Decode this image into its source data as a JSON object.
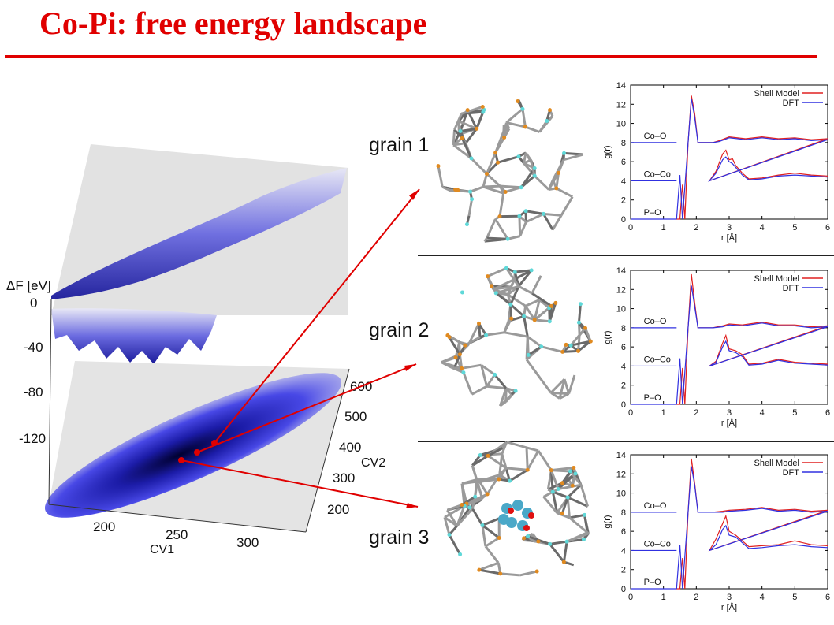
{
  "slide": {
    "title": "Co-Pi: free energy landscape",
    "accent_color": "#e00000"
  },
  "landscape": {
    "z_label": "ΔF [eV]",
    "z_ticks": [
      "0",
      "-40",
      "-80",
      "-120"
    ],
    "x_label": "CV1",
    "x_ticks": [
      "200",
      "250",
      "300"
    ],
    "y_label": "CV2",
    "y_ticks": [
      "200",
      "300",
      "400",
      "500",
      "600"
    ]
  },
  "grains": [
    {
      "name": "grain 1"
    },
    {
      "name": "grain 2"
    },
    {
      "name": "grain 3"
    }
  ],
  "chart_data": [
    {
      "type": "line",
      "title": "",
      "xlabel": "r [Å]",
      "ylabel": "g(r)",
      "xlim": [
        0,
        6
      ],
      "ylim": [
        0,
        14
      ],
      "xticks": [
        "0",
        "1",
        "2",
        "3",
        "4",
        "5",
        "6"
      ],
      "yticks": [
        "0",
        "2",
        "4",
        "6",
        "8",
        "10",
        "12",
        "14"
      ],
      "legend": "top-right",
      "annotations": [
        "Co–O",
        "Co–Co",
        "P–O"
      ],
      "series": [
        {
          "name": "Shell Model",
          "color": "#e02020",
          "points": [
            [
              1.4,
              0
            ],
            [
              1.5,
              0
            ],
            [
              1.58,
              3.6
            ],
            [
              1.65,
              0
            ],
            [
              1.75,
              8
            ],
            [
              1.85,
              12.9
            ],
            [
              1.95,
              11
            ],
            [
              2.05,
              8
            ],
            [
              2.5,
              8
            ],
            [
              2.7,
              8.2
            ],
            [
              3.0,
              8.6
            ],
            [
              3.5,
              8.4
            ],
            [
              4.0,
              8.6
            ],
            [
              4.5,
              8.4
            ],
            [
              5.0,
              8.5
            ],
            [
              5.5,
              8.3
            ],
            [
              6.0,
              8.4
            ],
            [
              2.4,
              4
            ],
            [
              2.6,
              5
            ],
            [
              2.8,
              6.8
            ],
            [
              2.9,
              7.2
            ],
            [
              3.0,
              6.2
            ],
            [
              3.1,
              6.3
            ],
            [
              3.2,
              5.6
            ],
            [
              3.4,
              4.8
            ],
            [
              3.6,
              4.2
            ],
            [
              4.0,
              4.3
            ],
            [
              4.5,
              4.6
            ],
            [
              5.0,
              4.8
            ],
            [
              5.5,
              4.6
            ],
            [
              6.0,
              4.5
            ]
          ]
        },
        {
          "name": "DFT",
          "color": "#3030e0",
          "points": [
            [
              1.4,
              0
            ],
            [
              1.5,
              4.6
            ],
            [
              1.58,
              0
            ],
            [
              1.75,
              8
            ],
            [
              1.85,
              12.6
            ],
            [
              1.95,
              10.6
            ],
            [
              2.05,
              8
            ],
            [
              2.5,
              8
            ],
            [
              2.7,
              8.1
            ],
            [
              3.0,
              8.5
            ],
            [
              3.5,
              8.3
            ],
            [
              4.0,
              8.5
            ],
            [
              4.5,
              8.3
            ],
            [
              5.0,
              8.4
            ],
            [
              5.5,
              8.2
            ],
            [
              6.0,
              8.3
            ],
            [
              2.4,
              4
            ],
            [
              2.6,
              4.8
            ],
            [
              2.8,
              6.2
            ],
            [
              2.9,
              6.5
            ],
            [
              3.0,
              6.0
            ],
            [
              3.1,
              5.8
            ],
            [
              3.2,
              5.4
            ],
            [
              3.4,
              4.6
            ],
            [
              3.6,
              4.1
            ],
            [
              4.0,
              4.2
            ],
            [
              4.5,
              4.5
            ],
            [
              5.0,
              4.6
            ],
            [
              5.5,
              4.5
            ],
            [
              6.0,
              4.4
            ]
          ]
        }
      ]
    },
    {
      "type": "line",
      "title": "",
      "xlabel": "r [Å]",
      "ylabel": "g(r)",
      "xlim": [
        0,
        6
      ],
      "ylim": [
        0,
        14
      ],
      "xticks": [
        "0",
        "1",
        "2",
        "3",
        "4",
        "5",
        "6"
      ],
      "yticks": [
        "0",
        "2",
        "4",
        "6",
        "8",
        "10",
        "12",
        "14"
      ],
      "legend": "top-right",
      "annotations": [
        "Co–O",
        "Co–Co",
        "P–O"
      ],
      "series": [
        {
          "name": "Shell Model",
          "color": "#e02020",
          "points": [
            [
              1.4,
              0
            ],
            [
              1.5,
              0
            ],
            [
              1.58,
              3.8
            ],
            [
              1.65,
              0
            ],
            [
              1.75,
              8
            ],
            [
              1.85,
              13.6
            ],
            [
              1.95,
              10.6
            ],
            [
              2.05,
              8
            ],
            [
              2.5,
              8
            ],
            [
              2.8,
              8.2
            ],
            [
              3.0,
              8.4
            ],
            [
              3.4,
              8.3
            ],
            [
              4.0,
              8.6
            ],
            [
              4.5,
              8.3
            ],
            [
              5.0,
              8.3
            ],
            [
              5.5,
              8.1
            ],
            [
              6.0,
              8.2
            ],
            [
              2.4,
              4
            ],
            [
              2.6,
              4.5
            ],
            [
              2.8,
              6.4
            ],
            [
              2.9,
              7.2
            ],
            [
              3.0,
              5.8
            ],
            [
              3.2,
              5.6
            ],
            [
              3.4,
              5.2
            ],
            [
              3.6,
              4.2
            ],
            [
              4.0,
              4.3
            ],
            [
              4.5,
              4.7
            ],
            [
              5.0,
              4.4
            ],
            [
              5.5,
              4.3
            ],
            [
              6.0,
              4.2
            ]
          ]
        },
        {
          "name": "DFT",
          "color": "#3030e0",
          "points": [
            [
              1.4,
              0
            ],
            [
              1.5,
              4.8
            ],
            [
              1.58,
              0
            ],
            [
              1.75,
              8
            ],
            [
              1.85,
              12.4
            ],
            [
              1.95,
              10.2
            ],
            [
              2.05,
              8
            ],
            [
              2.5,
              8
            ],
            [
              2.8,
              8.1
            ],
            [
              3.0,
              8.3
            ],
            [
              3.4,
              8.2
            ],
            [
              4.0,
              8.5
            ],
            [
              4.5,
              8.2
            ],
            [
              5.0,
              8.2
            ],
            [
              5.5,
              8.0
            ],
            [
              6.0,
              8.1
            ],
            [
              2.4,
              4
            ],
            [
              2.6,
              4.4
            ],
            [
              2.8,
              6.0
            ],
            [
              2.9,
              6.6
            ],
            [
              3.0,
              5.6
            ],
            [
              3.2,
              5.4
            ],
            [
              3.4,
              5.0
            ],
            [
              3.6,
              4.1
            ],
            [
              4.0,
              4.2
            ],
            [
              4.5,
              4.6
            ],
            [
              5.0,
              4.3
            ],
            [
              5.5,
              4.2
            ],
            [
              6.0,
              4.1
            ]
          ]
        }
      ]
    },
    {
      "type": "line",
      "title": "",
      "xlabel": "r [Å]",
      "ylabel": "g(r)",
      "xlim": [
        0,
        6
      ],
      "ylim": [
        0,
        14
      ],
      "xticks": [
        "0",
        "1",
        "2",
        "3",
        "4",
        "5",
        "6"
      ],
      "yticks": [
        "0",
        "2",
        "4",
        "6",
        "8",
        "10",
        "12",
        "14"
      ],
      "legend": "top-right",
      "annotations": [
        "Co–O",
        "Co–Co",
        "P–O"
      ],
      "series": [
        {
          "name": "Shell Model",
          "color": "#e02020",
          "points": [
            [
              1.4,
              0
            ],
            [
              1.5,
              0
            ],
            [
              1.58,
              3.2
            ],
            [
              1.65,
              0
            ],
            [
              1.75,
              8
            ],
            [
              1.85,
              13.6
            ],
            [
              1.95,
              11
            ],
            [
              2.05,
              8
            ],
            [
              2.5,
              8
            ],
            [
              2.8,
              8.1
            ],
            [
              3.0,
              8.2
            ],
            [
              3.5,
              8.3
            ],
            [
              4.0,
              8.5
            ],
            [
              4.5,
              8.2
            ],
            [
              5.0,
              8.3
            ],
            [
              5.5,
              8.1
            ],
            [
              6.0,
              8.2
            ],
            [
              2.4,
              4
            ],
            [
              2.6,
              5.2
            ],
            [
              2.8,
              6.8
            ],
            [
              2.9,
              7.6
            ],
            [
              3.0,
              6.0
            ],
            [
              3.2,
              5.6
            ],
            [
              3.4,
              5.0
            ],
            [
              3.6,
              4.4
            ],
            [
              4.0,
              4.5
            ],
            [
              4.5,
              4.6
            ],
            [
              5.0,
              5.0
            ],
            [
              5.5,
              4.6
            ],
            [
              6.0,
              4.5
            ]
          ]
        },
        {
          "name": "DFT",
          "color": "#3030e0",
          "points": [
            [
              1.4,
              0
            ],
            [
              1.5,
              4.6
            ],
            [
              1.58,
              0
            ],
            [
              1.75,
              8
            ],
            [
              1.85,
              12.8
            ],
            [
              1.95,
              10.8
            ],
            [
              2.05,
              8
            ],
            [
              2.5,
              8
            ],
            [
              2.8,
              8.0
            ],
            [
              3.0,
              8.1
            ],
            [
              3.5,
              8.2
            ],
            [
              4.0,
              8.4
            ],
            [
              4.5,
              8.1
            ],
            [
              5.0,
              8.2
            ],
            [
              5.5,
              8.0
            ],
            [
              6.0,
              8.1
            ],
            [
              2.4,
              4
            ],
            [
              2.6,
              4.6
            ],
            [
              2.8,
              6.2
            ],
            [
              2.9,
              6.6
            ],
            [
              3.0,
              5.6
            ],
            [
              3.2,
              5.4
            ],
            [
              3.4,
              4.8
            ],
            [
              3.6,
              4.2
            ],
            [
              4.0,
              4.3
            ],
            [
              4.5,
              4.5
            ],
            [
              5.0,
              4.6
            ],
            [
              5.5,
              4.4
            ],
            [
              6.0,
              4.3
            ]
          ]
        }
      ]
    }
  ]
}
